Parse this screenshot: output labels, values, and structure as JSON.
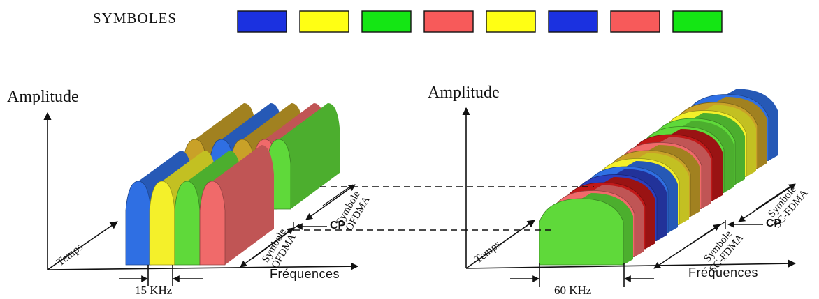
{
  "legend": {
    "title": "SYMBOLES",
    "colors": [
      "#1b31e0",
      "#ffff14",
      "#14e614",
      "#f75a5a",
      "#ffff14",
      "#1b31e0",
      "#f75a5a",
      "#14e614"
    ]
  },
  "left_panel": {
    "y_axis": "Amplitude",
    "time_axis": "Temps",
    "x_axis": "Fréquences",
    "spacing": "15 KHz",
    "cp": "CP",
    "symbol_label_1": "Symbole",
    "symbol_label_2": "OFDMA"
  },
  "right_panel": {
    "y_axis": "Amplitude",
    "time_axis": "Temps",
    "x_axis": "Fréquences",
    "spacing": "60 KHz",
    "cp": "CP",
    "symbol_label_1": "Symbole",
    "symbol_label_2": "SC-FDMA"
  },
  "palette": {
    "blue": "#2f6fe3",
    "yellow": "#f4f02a",
    "green": "#5fd93a",
    "red": "#f06a6a",
    "olive": "#c9a128",
    "darkred": "#c01818",
    "darkgreen": "#3fa52a",
    "navy": "#2a3fbf"
  }
}
